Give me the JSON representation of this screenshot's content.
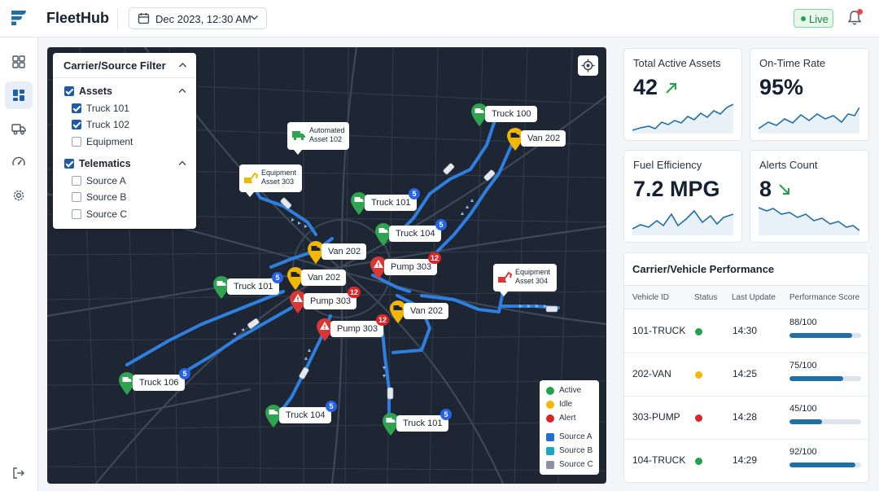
{
  "header": {
    "app_name": "FleetHub",
    "date_selector": "Dec 2023, 12:30 AM",
    "live_label": "Live"
  },
  "sidebar": {
    "items": [
      {
        "name": "grid-icon"
      },
      {
        "name": "dashboard-icon",
        "active": true
      },
      {
        "name": "truck-icon"
      },
      {
        "name": "speedometer-icon"
      },
      {
        "name": "gear-icon"
      }
    ],
    "bottom": {
      "name": "logout-icon"
    }
  },
  "filter": {
    "title": "Carrier/Source Filter",
    "groups": [
      {
        "label": "Assets",
        "checked": true,
        "items": [
          {
            "label": "Truck 101",
            "checked": true
          },
          {
            "label": "Truck 102",
            "checked": true
          },
          {
            "label": "Equipment",
            "checked": false
          }
        ]
      },
      {
        "label": "Telematics",
        "checked": true,
        "items": [
          {
            "label": "Source A",
            "checked": false
          },
          {
            "label": "Source B",
            "checked": false
          },
          {
            "label": "Source C",
            "checked": false
          }
        ]
      }
    ]
  },
  "map": {
    "markers": [
      {
        "label": "Truck 100",
        "status": "active",
        "icon": "truck-icon"
      },
      {
        "label": "Van 202",
        "status": "idle",
        "icon": "van-icon"
      },
      {
        "label": "Truck 101",
        "status": "active",
        "badge": "5",
        "icon": "truck-icon"
      },
      {
        "label": "Truck 104",
        "status": "active",
        "badge": "5",
        "icon": "truck-icon"
      },
      {
        "label": "Van 202",
        "status": "idle",
        "icon": "van-icon"
      },
      {
        "label": "Pump 303",
        "status": "alert",
        "badge": "12",
        "icon": "warning-icon"
      },
      {
        "label": "Truck 101",
        "status": "active",
        "badge": "5",
        "icon": "truck-icon"
      },
      {
        "label": "Van 202",
        "status": "idle",
        "icon": "van-icon"
      },
      {
        "label": "Pump 303",
        "status": "alert",
        "badge": "12",
        "icon": "warning-icon"
      },
      {
        "label": "Van 202",
        "status": "idle",
        "icon": "van-icon"
      },
      {
        "label": "Pump 303",
        "status": "alert",
        "badge": "12",
        "icon": "warning-icon"
      },
      {
        "label": "Truck 106",
        "status": "active",
        "badge": "5",
        "icon": "truck-icon"
      },
      {
        "label": "Truck 104",
        "status": "active",
        "badge": "5",
        "icon": "truck-icon"
      },
      {
        "label": "Truck 101",
        "status": "active",
        "badge": "5",
        "icon": "truck-icon"
      }
    ],
    "callouts": [
      {
        "line1": "Automated",
        "line2": "Asset 102",
        "status": "active"
      },
      {
        "line1": "Equipment",
        "line2": "Asset 303",
        "status": "idle"
      },
      {
        "line1": "Equipment",
        "line2": "Asset 304",
        "status": "alert"
      }
    ],
    "legend": [
      {
        "label": "Active",
        "color": "#22a34a",
        "shape": "circle"
      },
      {
        "label": "Idle",
        "color": "#f5b800",
        "shape": "circle"
      },
      {
        "label": "Alert",
        "color": "#dc2626",
        "shape": "circle"
      },
      {
        "label": "Source A",
        "color": "#1f6fd1",
        "shape": "square"
      },
      {
        "label": "Source B",
        "color": "#17a8c4",
        "shape": "square"
      },
      {
        "label": "Source C",
        "color": "#8b93a3",
        "shape": "square"
      }
    ]
  },
  "kpis": [
    {
      "label": "Total Active Assets",
      "value": "42",
      "trend": "up"
    },
    {
      "label": "On-Time Rate",
      "value": "95%"
    },
    {
      "label": "Fuel Efficiency",
      "value": "7.2 MPG"
    },
    {
      "label": "Alerts Count",
      "value": "8",
      "trend": "down"
    }
  ],
  "performance": {
    "title": "Carrier/Vehicle Performance",
    "columns": [
      "Vehicle ID",
      "Status",
      "Last Update",
      "Performance Score"
    ],
    "rows": [
      {
        "vehicle": "101-TRUCK",
        "status_color": "#22a34a",
        "updated": "14:30",
        "score": "88/100",
        "score_value": 88
      },
      {
        "vehicle": "202-VAN",
        "status_color": "#f5b800",
        "updated": "14:25",
        "score": "75/100",
        "score_value": 75
      },
      {
        "vehicle": "303-PUMP",
        "status_color": "#dc2626",
        "updated": "14:28",
        "score": "45/100",
        "score_value": 45
      },
      {
        "vehicle": "104-TRUCK",
        "status_color": "#22a34a",
        "updated": "14:29",
        "score": "92/100",
        "score_value": 92
      }
    ]
  },
  "colors": {
    "active": "#2fa34f",
    "idle": "#f2b705",
    "alert": "#d93636",
    "route": "#2f7fe0",
    "sparkline": "#1f6fa9"
  }
}
